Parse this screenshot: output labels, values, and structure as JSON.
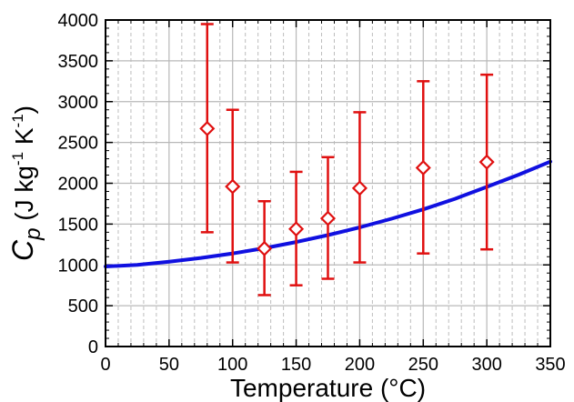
{
  "chart_data": {
    "type": "scatter",
    "title": "",
    "xlabel": "Temperature (°C)",
    "ylabel": {
      "c": "C",
      "sub": "p",
      "units_open": " (J kg",
      "exp1": "-1",
      "units_mid": " K",
      "exp2": "-1",
      "units_close": ")"
    },
    "xlim": [
      0,
      350
    ],
    "ylim": [
      0,
      4000
    ],
    "x_ticks": [
      0,
      50,
      100,
      150,
      200,
      250,
      300,
      350
    ],
    "y_ticks": [
      0,
      500,
      1000,
      1500,
      2000,
      2500,
      3000,
      3500,
      4000
    ],
    "x_tick_labels": [
      "0",
      "50",
      "100",
      "150",
      "200",
      "250",
      "300",
      "350"
    ],
    "y_tick_labels": [
      "0",
      "500",
      "1000",
      "1500",
      "2000",
      "2500",
      "3000",
      "3500",
      "4000"
    ],
    "grid": true,
    "series": [
      {
        "kind": "line",
        "color": "#1010e0",
        "x": [
          0,
          25,
          50,
          75,
          100,
          125,
          150,
          175,
          200,
          225,
          250,
          275,
          300,
          325,
          350
        ],
        "y": [
          980,
          1000,
          1040,
          1085,
          1140,
          1205,
          1280,
          1365,
          1460,
          1565,
          1680,
          1810,
          1955,
          2105,
          2265
        ]
      },
      {
        "kind": "errorbar",
        "color": "#e01010",
        "marker": "diamond-open",
        "points": [
          {
            "x": 80,
            "y": 2670,
            "ylow": 1400,
            "yhigh": 3950
          },
          {
            "x": 100,
            "y": 1960,
            "ylow": 1030,
            "yhigh": 2900
          },
          {
            "x": 125,
            "y": 1200,
            "ylow": 630,
            "yhigh": 1780
          },
          {
            "x": 150,
            "y": 1440,
            "ylow": 750,
            "yhigh": 2140
          },
          {
            "x": 175,
            "y": 1570,
            "ylow": 830,
            "yhigh": 2320
          },
          {
            "x": 200,
            "y": 1940,
            "ylow": 1030,
            "yhigh": 2870
          },
          {
            "x": 250,
            "y": 2190,
            "ylow": 1140,
            "yhigh": 3250
          },
          {
            "x": 300,
            "y": 2260,
            "ylow": 1190,
            "yhigh": 3330
          }
        ]
      }
    ]
  }
}
